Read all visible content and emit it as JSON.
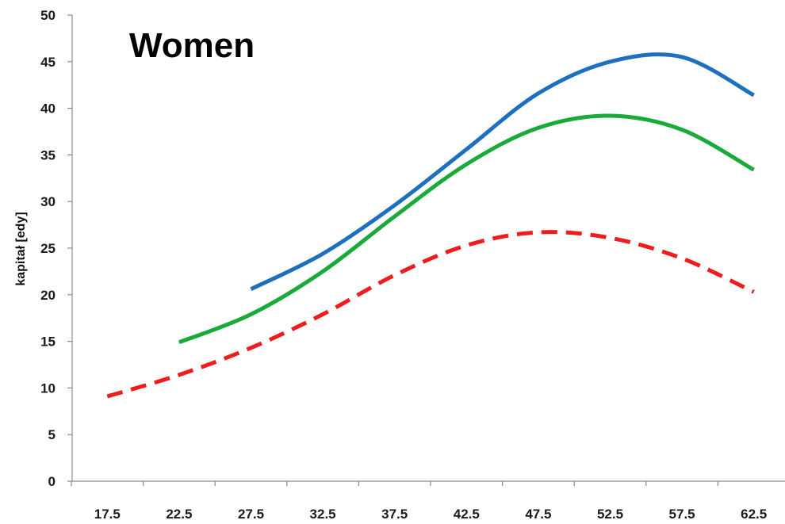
{
  "chart_data": {
    "type": "line",
    "title": "Women",
    "xlabel": "",
    "ylabel": "kapitał [edy]",
    "x": [
      17.5,
      22.5,
      27.5,
      32.5,
      37.5,
      42.5,
      47.5,
      52.5,
      57.5,
      62.5
    ],
    "x_tick_labels": [
      "17.5",
      "22.5",
      "27.5",
      "32.5",
      "37.5",
      "42.5",
      "47.5",
      "52.5",
      "57.5",
      "62.5"
    ],
    "ylim": [
      0,
      50
    ],
    "y_ticks": [
      0,
      5,
      10,
      15,
      20,
      25,
      30,
      35,
      40,
      45,
      50
    ],
    "y_tick_labels": [
      "0",
      "5",
      "10",
      "15",
      "20",
      "25",
      "30",
      "35",
      "40",
      "45",
      "50"
    ],
    "grid": false,
    "series": [
      {
        "color": "#1f6fbf",
        "style": "solid",
        "points": [
          [
            27.5,
            20.6
          ],
          [
            32.5,
            24.4
          ],
          [
            37.5,
            29.6
          ],
          [
            42.5,
            35.6
          ],
          [
            47.5,
            41.6
          ],
          [
            52.5,
            45.0
          ],
          [
            57.5,
            45.5
          ],
          [
            62.5,
            41.4
          ]
        ]
      },
      {
        "color": "#1aaa3a",
        "style": "solid",
        "points": [
          [
            22.5,
            14.9
          ],
          [
            27.5,
            17.9
          ],
          [
            32.5,
            22.5
          ],
          [
            37.5,
            28.4
          ],
          [
            42.5,
            34.0
          ],
          [
            47.5,
            37.9
          ],
          [
            52.5,
            39.2
          ],
          [
            57.5,
            37.7
          ],
          [
            62.5,
            33.4
          ]
        ]
      },
      {
        "color": "#ee1c1c",
        "style": "dashed",
        "points": [
          [
            17.5,
            9.1
          ],
          [
            22.5,
            11.4
          ],
          [
            27.5,
            14.3
          ],
          [
            32.5,
            17.9
          ],
          [
            37.5,
            22.1
          ],
          [
            42.5,
            25.3
          ],
          [
            47.5,
            26.7
          ],
          [
            52.5,
            26.1
          ],
          [
            57.5,
            23.9
          ],
          [
            62.5,
            20.3
          ]
        ]
      }
    ]
  }
}
